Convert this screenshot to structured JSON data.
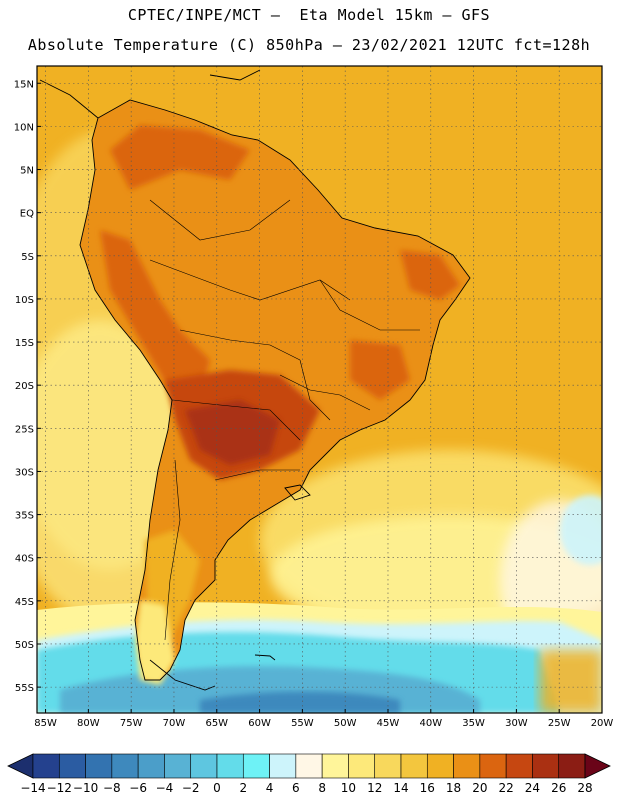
{
  "header": {
    "line1": "CPTEC/INPE/MCT –  Eta Model 15km – GFS",
    "line2": "Absolute Temperature (C) 850hPa – 23/02/2021 12UTC fct=128h"
  },
  "map": {
    "lat_range": [
      -58,
      17
    ],
    "lon_range": [
      -86,
      -20
    ],
    "lat_ticks": [
      {
        "value": 15,
        "label": "15N"
      },
      {
        "value": 10,
        "label": "10N"
      },
      {
        "value": 5,
        "label": "5N"
      },
      {
        "value": 0,
        "label": "EQ"
      },
      {
        "value": -5,
        "label": "5S"
      },
      {
        "value": -10,
        "label": "10S"
      },
      {
        "value": -15,
        "label": "15S"
      },
      {
        "value": -20,
        "label": "20S"
      },
      {
        "value": -25,
        "label": "25S"
      },
      {
        "value": -30,
        "label": "30S"
      },
      {
        "value": -35,
        "label": "35S"
      },
      {
        "value": -40,
        "label": "40S"
      },
      {
        "value": -45,
        "label": "45S"
      },
      {
        "value": -50,
        "label": "50S"
      },
      {
        "value": -55,
        "label": "55S"
      }
    ],
    "lon_ticks": [
      {
        "value": -85,
        "label": "85W"
      },
      {
        "value": -80,
        "label": "80W"
      },
      {
        "value": -75,
        "label": "75W"
      },
      {
        "value": -70,
        "label": "70W"
      },
      {
        "value": -65,
        "label": "65W"
      },
      {
        "value": -60,
        "label": "60W"
      },
      {
        "value": -55,
        "label": "55W"
      },
      {
        "value": -50,
        "label": "50W"
      },
      {
        "value": -45,
        "label": "45W"
      },
      {
        "value": -40,
        "label": "40W"
      },
      {
        "value": -35,
        "label": "35W"
      },
      {
        "value": -30,
        "label": "30W"
      },
      {
        "value": -25,
        "label": "25W"
      },
      {
        "value": -20,
        "label": "20W"
      }
    ]
  },
  "colorbar": {
    "unit": "C",
    "levels": [
      -14,
      -12,
      -10,
      -8,
      -6,
      -4,
      -2,
      0,
      2,
      4,
      6,
      8,
      10,
      12,
      14,
      16,
      18,
      20,
      22,
      24,
      26,
      28
    ],
    "under_color": "#1c2f6e",
    "over_color": "#6a0418",
    "colors": [
      "#24418e",
      "#2b5ca2",
      "#3373b0",
      "#3e89bd",
      "#4b9ec9",
      "#58b2d4",
      "#5ec6e0",
      "#63dcea",
      "#6ef2f6",
      "#cdf4fb",
      "#fff7e6",
      "#fff59a",
      "#fde97a",
      "#f8d85c",
      "#f3c63e",
      "#f0b123",
      "#ea9016",
      "#db6510",
      "#c64711",
      "#aa3012",
      "#8b1d14"
    ]
  },
  "colors": {
    "ocean_warm": "#f3c63e",
    "ocean_mid": "#fde97a",
    "ocean_cool": "#fff59a",
    "land_base": "#ea9016",
    "land_hot": "#db6510",
    "land_hotter": "#c64711",
    "land_hottest": "#aa3012",
    "cold_south": "#63dcea",
    "coldest_south": "#4b9ec9",
    "gridline": "#555555",
    "coastline": "#000000"
  }
}
